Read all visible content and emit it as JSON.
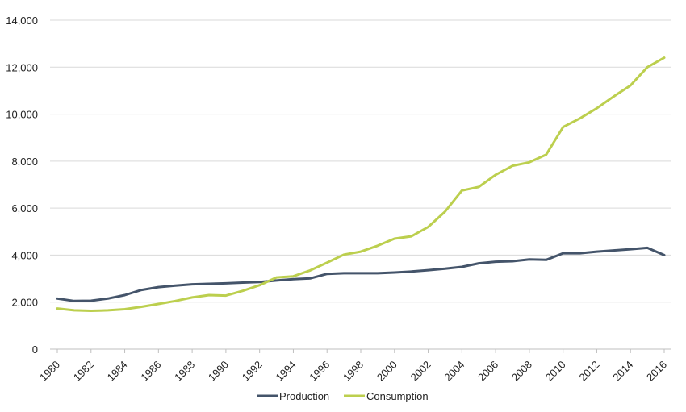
{
  "chart_data": {
    "type": "line",
    "title": "",
    "xlabel": "",
    "ylabel": "",
    "x": [
      1980,
      1981,
      1982,
      1983,
      1984,
      1985,
      1986,
      1987,
      1988,
      1989,
      1990,
      1991,
      1992,
      1993,
      1994,
      1995,
      1996,
      1997,
      1998,
      1999,
      2000,
      2001,
      2002,
      2003,
      2004,
      2005,
      2006,
      2007,
      2008,
      2009,
      2010,
      2011,
      2012,
      2013,
      2014,
      2015,
      2016
    ],
    "x_tick_labels": [
      "1980",
      "1982",
      "1984",
      "1986",
      "1988",
      "1990",
      "1992",
      "1994",
      "1996",
      "1998",
      "2000",
      "2002",
      "2004",
      "2006",
      "2008",
      "2010",
      "2012",
      "2014",
      "2016"
    ],
    "y_tick_labels": [
      "0",
      "2,000",
      "4,000",
      "6,000",
      "8,000",
      "10,000",
      "12,000",
      "14,000"
    ],
    "y_ticks": [
      0,
      2000,
      4000,
      6000,
      8000,
      10000,
      12000,
      14000
    ],
    "ylim": [
      0,
      14000
    ],
    "xlim": [
      1980,
      2016
    ],
    "grid": "horizontal",
    "legend_position": "bottom",
    "series": [
      {
        "name": "Production",
        "color": "#44546a",
        "values": [
          2150,
          2050,
          2060,
          2150,
          2300,
          2520,
          2640,
          2700,
          2760,
          2780,
          2800,
          2830,
          2860,
          2920,
          2980,
          3010,
          3200,
          3230,
          3230,
          3230,
          3260,
          3300,
          3360,
          3420,
          3500,
          3650,
          3720,
          3740,
          3820,
          3800,
          4080,
          4080,
          4150,
          4200,
          4250,
          4310,
          4000
        ]
      },
      {
        "name": "Consumption",
        "color": "#bccf4e",
        "values": [
          1730,
          1650,
          1630,
          1650,
          1700,
          1800,
          1920,
          2050,
          2200,
          2300,
          2280,
          2480,
          2720,
          3050,
          3100,
          3350,
          3680,
          4020,
          4150,
          4400,
          4700,
          4800,
          5200,
          5850,
          6750,
          6900,
          7420,
          7800,
          7950,
          8280,
          9450,
          9820,
          10250,
          10750,
          11220,
          12000,
          12400
        ]
      }
    ]
  }
}
